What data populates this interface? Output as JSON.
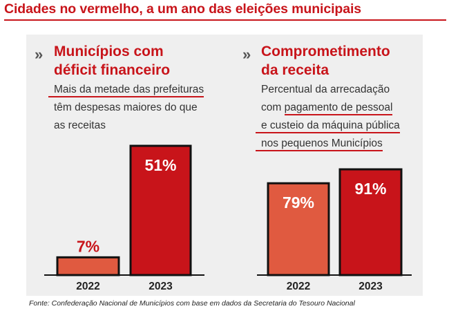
{
  "headline": "Cidades no vermelho, a um ano das eleições municipais",
  "source": "Fonte: Confederação Nacional de Municípios com base em dados da Secretaria do Tesouro Nacional",
  "colors": {
    "accent": "#c8141a",
    "bar_2022": "#e05a40",
    "bar_2023": "#c8141a",
    "panel": "#efefef"
  },
  "left": {
    "title_line1": "Municípios com",
    "title_line2": "déficit financeiro",
    "desc_line1": "Mais da metade das prefeituras",
    "desc_line2": "têm despesas maiores do que",
    "desc_line3": "as receitas"
  },
  "right": {
    "title_line1": "Comprometimento",
    "title_line2": "da receita",
    "desc_line1": "Percentual da arrecadação",
    "desc_line2_pre": "com ",
    "desc_line2_ul": "pagamento de pessoal",
    "desc_line3": "e custeio da máquina pública",
    "desc_line4": "nos pequenos Municípios"
  },
  "chart_data": [
    {
      "type": "bar",
      "title": "Municípios com déficit financeiro",
      "categories": [
        "2022",
        "2023"
      ],
      "values": [
        7,
        51
      ],
      "labels": [
        "7%",
        "51%"
      ],
      "ylim": [
        0,
        51
      ]
    },
    {
      "type": "bar",
      "title": "Comprometimento da receita",
      "categories": [
        "2022",
        "2023"
      ],
      "values": [
        79,
        91
      ],
      "labels": [
        "79%",
        "91%"
      ],
      "ylim": [
        0,
        91
      ]
    }
  ]
}
